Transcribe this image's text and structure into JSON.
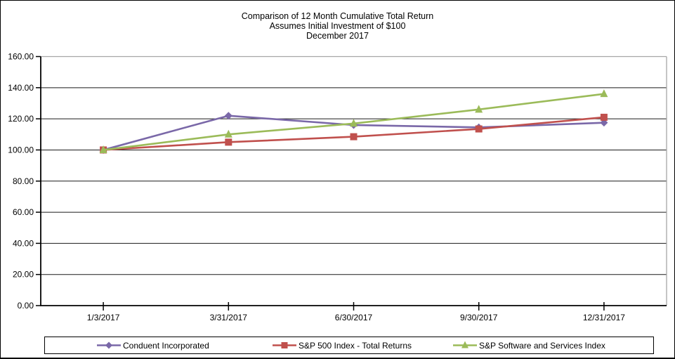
{
  "chart_data": {
    "type": "line",
    "title": "Comparison of 12 Month Cumulative Total Return",
    "subtitle": "Assumes Initial Investment of $100",
    "subtitle2": "December 2017",
    "categories": [
      "1/3/2017",
      "3/31/2017",
      "6/30/2017",
      "9/30/2017",
      "12/31/2017"
    ],
    "series": [
      {
        "name": "Conduent Incorporated",
        "color": "#7A68A8",
        "marker": "diamond",
        "values": [
          100,
          122,
          116,
          114.5,
          117.5
        ]
      },
      {
        "name": "S&P 500 Index - Total Returns",
        "color": "#C0504D",
        "marker": "square",
        "values": [
          100,
          105,
          108.5,
          113.5,
          121
        ]
      },
      {
        "name": "S&P Software and Services Index",
        "color": "#9BBB59",
        "marker": "triangle",
        "values": [
          100,
          110,
          117,
          126,
          136
        ]
      }
    ],
    "ylim": [
      0,
      160
    ],
    "ytick_step": 20,
    "ytick_labels": [
      "0.00",
      "20.00",
      "40.00",
      "60.00",
      "80.00",
      "100.00",
      "120.00",
      "140.00",
      "160.00"
    ],
    "grid": true,
    "legend_position": "bottom",
    "colors": {
      "axis": "#000000",
      "gridline": "#1a1a1a",
      "plot_border": "#A6A6A6",
      "text": "#000000"
    }
  }
}
